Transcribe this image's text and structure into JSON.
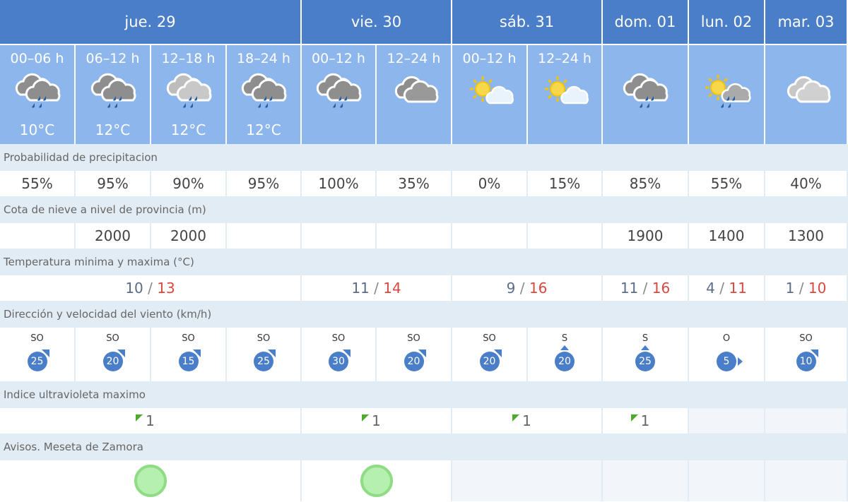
{
  "days": [
    {
      "label": "jue. 29",
      "span": 4
    },
    {
      "label": "vie. 30",
      "span": 2
    },
    {
      "label": "sáb. 31",
      "span": 2
    },
    {
      "label": "dom. 01",
      "span": 1
    },
    {
      "label": "lun. 02",
      "span": 1
    },
    {
      "label": "mar. 03",
      "span": 1
    }
  ],
  "periods": [
    {
      "label": "00–06 h",
      "icon": "rain-heavy-cloud-icon",
      "temp": "10°C"
    },
    {
      "label": "06–12 h",
      "icon": "rain-heavy-cloud-icon",
      "temp": "12°C"
    },
    {
      "label": "12–18 h",
      "icon": "rain-light-cloud-icon",
      "temp": "12°C"
    },
    {
      "label": "18–24 h",
      "icon": "rain-heavy-cloud-icon",
      "temp": "12°C"
    },
    {
      "label": "00–12 h",
      "icon": "rain-heavy-cloud-icon",
      "temp": ""
    },
    {
      "label": "12–24 h",
      "icon": "cloudy-icon",
      "temp": ""
    },
    {
      "label": "00–12 h",
      "icon": "sun-cloud-icon",
      "temp": ""
    },
    {
      "label": "12–24 h",
      "icon": "sun-cloud-icon",
      "temp": ""
    },
    {
      "label": "",
      "icon": "rain-heavy-cloud-icon",
      "temp": ""
    },
    {
      "label": "",
      "icon": "sun-rain-icon",
      "temp": ""
    },
    {
      "label": "",
      "icon": "cloudy-light-icon",
      "temp": ""
    }
  ],
  "labels": {
    "precip": "Probabilidad de precipitacion",
    "snow": "Cota de nieve a nivel de provincia (m)",
    "temp": "Temperatura minima y maxima (°C)",
    "wind": "Dirección y velocidad del viento (km/h)",
    "uv": "Indice ultravioleta maximo",
    "avisos": "Avisos. Meseta de Zamora"
  },
  "precip": [
    "55%",
    "95%",
    "90%",
    "95%",
    "100%",
    "35%",
    "0%",
    "15%",
    "85%",
    "55%",
    "40%"
  ],
  "snow": [
    "",
    "2000",
    "2000",
    "",
    "",
    "",
    "",
    "",
    "1900",
    "1400",
    "1300"
  ],
  "temps": [
    {
      "min": "10",
      "max": "13",
      "span": 4
    },
    {
      "min": "11",
      "max": "14",
      "span": 2
    },
    {
      "min": "9",
      "max": "16",
      "span": 2
    },
    {
      "min": "11",
      "max": "16",
      "span": 1
    },
    {
      "min": "4",
      "max": "11",
      "span": 1
    },
    {
      "min": "1",
      "max": "10",
      "span": 1
    }
  ],
  "wind": [
    {
      "dir": "SO",
      "speed": "25"
    },
    {
      "dir": "SO",
      "speed": "20"
    },
    {
      "dir": "SO",
      "speed": "15"
    },
    {
      "dir": "SO",
      "speed": "25"
    },
    {
      "dir": "SO",
      "speed": "30"
    },
    {
      "dir": "SO",
      "speed": "20"
    },
    {
      "dir": "SO",
      "speed": "20"
    },
    {
      "dir": "S",
      "speed": "20"
    },
    {
      "dir": "S",
      "speed": "25"
    },
    {
      "dir": "O",
      "speed": "5"
    },
    {
      "dir": "SO",
      "speed": "10"
    }
  ],
  "uv": [
    {
      "value": "1",
      "span": 4
    },
    {
      "value": "1",
      "span": 2
    },
    {
      "value": "1",
      "span": 2
    },
    {
      "value": "1",
      "span": 1
    },
    {
      "value": "",
      "span": 1
    },
    {
      "value": "",
      "span": 1
    }
  ],
  "avisos": [
    {
      "level": "green",
      "span": 4
    },
    {
      "level": "green",
      "span": 2
    },
    {
      "level": "",
      "span": 2
    },
    {
      "level": "",
      "span": 1
    },
    {
      "level": "",
      "span": 1
    },
    {
      "level": "",
      "span": 1
    }
  ],
  "colors": {
    "header": "#4a7ec8",
    "subheader": "#8db6ec",
    "min": "#5b6d86",
    "max": "#d9483f",
    "uv_low": "#4bab2f",
    "aviso_green": "#b6f0b0"
  }
}
